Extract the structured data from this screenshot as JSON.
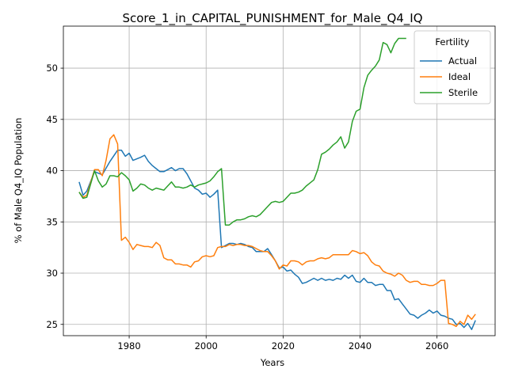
{
  "chart_data": {
    "type": "line",
    "title": "Score_1_in_CAPITAL_PUNISHMENT_for_Male_Q4_IQ",
    "xlabel": "Years",
    "ylabel": "% of Male Q4_IQ Population",
    "xlim": [
      1962.9,
      2075.1
    ],
    "ylim": [
      23.9,
      54.1
    ],
    "xticks": [
      1980,
      2000,
      2020,
      2040,
      2060
    ],
    "yticks": [
      25,
      30,
      35,
      40,
      45,
      50
    ],
    "grid": true,
    "legend": {
      "title": "Fertility",
      "position": "top-right"
    },
    "series": [
      {
        "name": "Actual",
        "color": "#1f77b4",
        "x": [
          1967,
          1968,
          1969,
          1971,
          1973,
          1975,
          1977,
          1978,
          1979,
          1980,
          1981,
          1983,
          1984,
          1985,
          1986,
          1987,
          1988,
          1989,
          1990,
          1991,
          1992,
          1993,
          1994,
          1995,
          1996,
          1997,
          1998,
          1999,
          2000,
          2001,
          2002,
          2003,
          2004,
          2005,
          2006,
          2007,
          2008,
          2009,
          2010,
          2011,
          2012,
          2013,
          2014,
          2015,
          2016,
          2017,
          2018,
          2019,
          2020,
          2021,
          2022,
          2023,
          2024,
          2025,
          2026,
          2027,
          2028,
          2029,
          2030,
          2031,
          2032,
          2033,
          2034,
          2035,
          2036,
          2037,
          2038,
          2039,
          2040,
          2041,
          2042,
          2043,
          2044,
          2045,
          2046,
          2047,
          2048,
          2049,
          2050,
          2051,
          2052,
          2053,
          2054,
          2055,
          2056,
          2057,
          2058,
          2059,
          2060,
          2061,
          2062,
          2063,
          2064,
          2065,
          2066,
          2067,
          2068,
          2069,
          2070
        ],
        "values": [
          38.9,
          37.6,
          38.0,
          39.9,
          39.6,
          40.9,
          42.0,
          42.0,
          41.4,
          41.7,
          41.0,
          41.3,
          41.5,
          40.9,
          40.5,
          40.2,
          39.9,
          39.9,
          40.1,
          40.3,
          40.0,
          40.2,
          40.2,
          39.7,
          39.0,
          38.3,
          38.1,
          37.7,
          37.8,
          37.4,
          37.7,
          38.1,
          32.5,
          32.7,
          32.9,
          32.9,
          32.8,
          32.9,
          32.8,
          32.6,
          32.5,
          32.1,
          32.1,
          32.1,
          32.4,
          31.8,
          31.2,
          30.5,
          30.6,
          30.2,
          30.3,
          29.9,
          29.6,
          29.0,
          29.1,
          29.3,
          29.5,
          29.3,
          29.5,
          29.3,
          29.4,
          29.3,
          29.5,
          29.4,
          29.8,
          29.5,
          29.8,
          29.2,
          29.1,
          29.5,
          29.1,
          29.1,
          28.8,
          28.9,
          28.9,
          28.3,
          28.3,
          27.4,
          27.5,
          27.0,
          26.5,
          26.0,
          25.9,
          25.6,
          25.9,
          26.1,
          26.4,
          26.1,
          26.3,
          25.9,
          25.8,
          25.6,
          25.5,
          25.0,
          25.1,
          24.7,
          25.1,
          24.5,
          25.4
        ]
      },
      {
        "name": "Ideal",
        "color": "#ff7f0e",
        "x": [
          1967,
          1968,
          1969,
          1971,
          1972,
          1973,
          1974,
          1975,
          1976,
          1977,
          1978,
          1979,
          1980,
          1981,
          1982,
          1983,
          1984,
          1985,
          1986,
          1987,
          1988,
          1989,
          1990,
          1991,
          1992,
          1993,
          1994,
          1995,
          1996,
          1997,
          1998,
          1999,
          2000,
          2001,
          2002,
          2003,
          2004,
          2005,
          2006,
          2007,
          2008,
          2009,
          2010,
          2011,
          2012,
          2013,
          2014,
          2015,
          2016,
          2017,
          2018,
          2019,
          2020,
          2021,
          2022,
          2023,
          2024,
          2025,
          2026,
          2027,
          2028,
          2029,
          2030,
          2031,
          2032,
          2033,
          2034,
          2035,
          2036,
          2037,
          2038,
          2039,
          2040,
          2041,
          2042,
          2043,
          2044,
          2045,
          2046,
          2047,
          2048,
          2049,
          2050,
          2051,
          2052,
          2053,
          2054,
          2055,
          2056,
          2057,
          2058,
          2059,
          2060,
          2061,
          2062,
          2063,
          2064,
          2065,
          2066,
          2067,
          2068,
          2069,
          2070
        ],
        "values": [
          37.9,
          37.4,
          37.6,
          40.1,
          40.1,
          39.5,
          41.0,
          43.1,
          43.5,
          42.6,
          33.2,
          33.5,
          33.0,
          32.3,
          32.8,
          32.7,
          32.6,
          32.6,
          32.5,
          33.0,
          32.7,
          31.5,
          31.3,
          31.3,
          30.9,
          30.9,
          30.8,
          30.8,
          30.6,
          31.1,
          31.2,
          31.6,
          31.7,
          31.6,
          31.7,
          32.5,
          32.6,
          32.6,
          32.8,
          32.7,
          32.8,
          32.8,
          32.7,
          32.7,
          32.6,
          32.4,
          32.2,
          32.1,
          32.1,
          31.7,
          31.2,
          30.4,
          30.8,
          30.7,
          31.2,
          31.2,
          31.1,
          30.8,
          31.1,
          31.2,
          31.2,
          31.4,
          31.5,
          31.4,
          31.5,
          31.8,
          31.8,
          31.8,
          31.8,
          31.8,
          32.2,
          32.1,
          31.9,
          32.0,
          31.7,
          31.1,
          30.8,
          30.7,
          30.2,
          30.0,
          29.9,
          29.7,
          30.0,
          29.8,
          29.3,
          29.1,
          29.2,
          29.2,
          28.9,
          28.9,
          28.8,
          28.8,
          29.0,
          29.3,
          29.3,
          25.1,
          25.0,
          24.8,
          25.3,
          25.0,
          25.9,
          25.5,
          26.0
        ]
      },
      {
        "name": "Sterile",
        "color": "#2ca02c",
        "x": [
          1967,
          1968,
          1969,
          1971,
          1972,
          1973,
          1974,
          1975,
          1976,
          1977,
          1978,
          1979,
          1980,
          1981,
          1982,
          1983,
          1984,
          1985,
          1986,
          1987,
          1988,
          1989,
          1990,
          1991,
          1992,
          1993,
          1994,
          1995,
          1996,
          1997,
          1998,
          1999,
          2000,
          2001,
          2002,
          2003,
          2004,
          2005,
          2006,
          2007,
          2008,
          2009,
          2010,
          2011,
          2012,
          2013,
          2014,
          2015,
          2016,
          2017,
          2018,
          2019,
          2020,
          2021,
          2022,
          2023,
          2024,
          2025,
          2026,
          2027,
          2028,
          2029,
          2030,
          2031,
          2032,
          2033,
          2034,
          2035,
          2036,
          2037,
          2038,
          2039,
          2040,
          2041,
          2042,
          2043,
          2044,
          2045,
          2046,
          2047,
          2048,
          2049,
          2050,
          2051,
          2052
        ],
        "values": [
          37.9,
          37.3,
          37.4,
          40.0,
          39.0,
          38.4,
          38.7,
          39.5,
          39.5,
          39.4,
          39.8,
          39.5,
          39.1,
          38.0,
          38.3,
          38.7,
          38.6,
          38.3,
          38.1,
          38.3,
          38.2,
          38.1,
          38.5,
          38.9,
          38.4,
          38.4,
          38.3,
          38.4,
          38.6,
          38.4,
          38.6,
          38.7,
          38.8,
          39.0,
          39.4,
          39.9,
          40.2,
          34.7,
          34.7,
          35.0,
          35.2,
          35.2,
          35.3,
          35.5,
          35.6,
          35.5,
          35.7,
          36.1,
          36.5,
          36.9,
          37.0,
          36.9,
          37.0,
          37.4,
          37.8,
          37.8,
          37.9,
          38.1,
          38.5,
          38.8,
          39.1,
          40.1,
          41.6,
          41.8,
          42.1,
          42.5,
          42.8,
          43.3,
          42.2,
          42.8,
          44.8,
          45.8,
          46.0,
          48.1,
          49.3,
          49.8,
          50.2,
          50.8,
          52.5,
          52.3,
          51.5,
          52.4,
          52.9,
          52.9,
          52.9
        ]
      }
    ]
  }
}
